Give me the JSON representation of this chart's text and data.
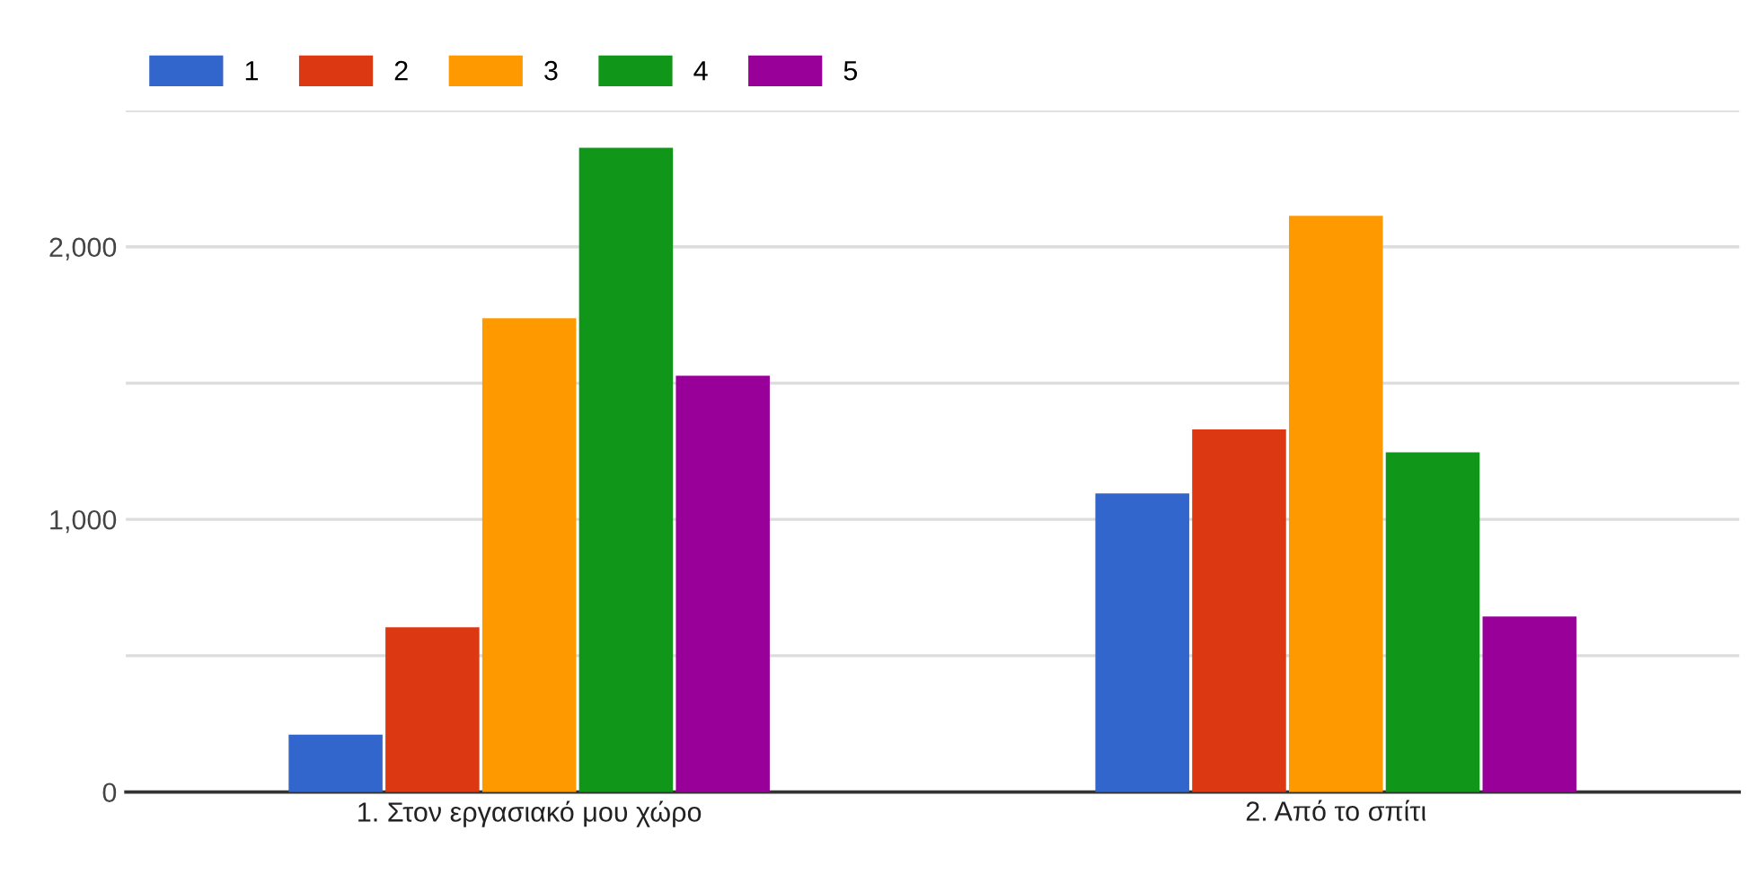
{
  "chart_data": {
    "type": "bar",
    "categories": [
      "1. Στον εργασιακό μου χώρο",
      "2. Από το σπίτι"
    ],
    "series": [
      {
        "name": "1",
        "color": "#3366cc",
        "values": [
          211,
          1095
        ]
      },
      {
        "name": "2",
        "color": "#dc3912",
        "values": [
          604,
          1330
        ]
      },
      {
        "name": "3",
        "color": "#ff9900",
        "values": [
          1738,
          2114
        ]
      },
      {
        "name": "4",
        "color": "#109618",
        "values": [
          2363,
          1246
        ]
      },
      {
        "name": "5",
        "color": "#990099",
        "values": [
          1527,
          644
        ]
      }
    ],
    "ylim": [
      0,
      2500
    ],
    "yticks": [
      0,
      {
        "value": 500,
        "label": null
      },
      {
        "value": 1000,
        "label": "1,000"
      },
      {
        "value": 1500,
        "label": null
      },
      {
        "value": 2000,
        "label": "2,000"
      },
      {
        "value": 2500,
        "label": null
      }
    ],
    "grid": "y",
    "legend": "top left"
  }
}
